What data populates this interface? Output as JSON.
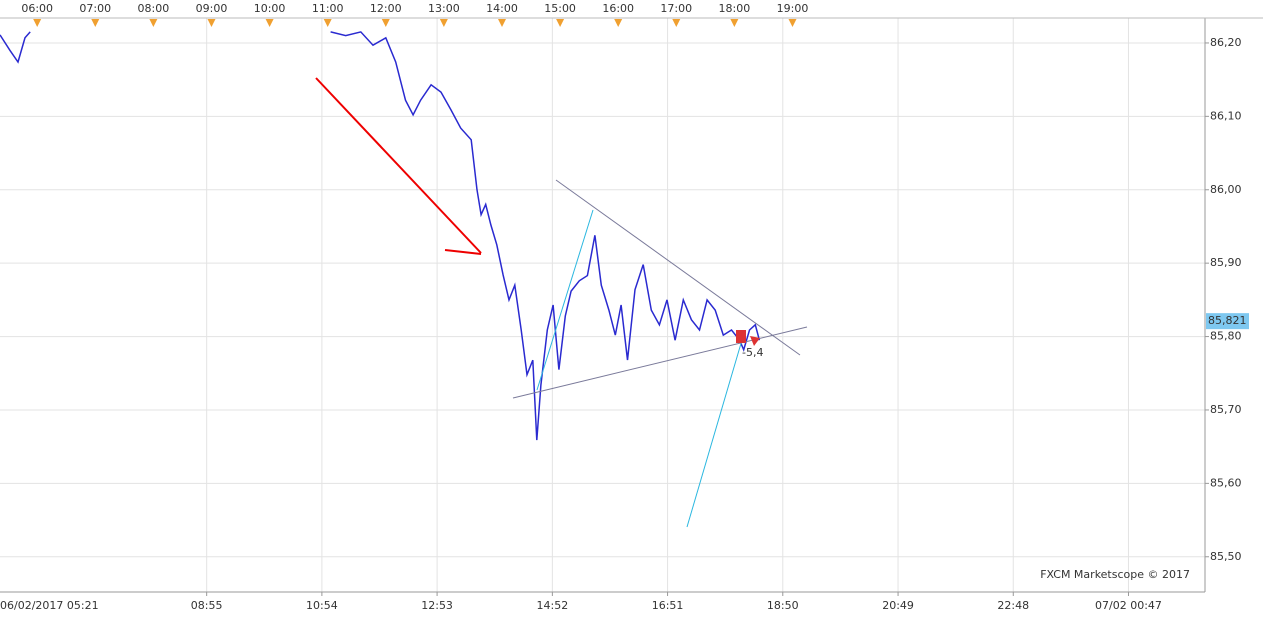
{
  "chart_data": {
    "type": "line",
    "x": [
      5.36,
      5.53,
      5.67,
      5.79,
      5.88,
      null,
      11.05,
      11.31,
      11.57,
      11.78,
      12.0,
      12.17,
      12.34,
      12.47,
      12.6,
      12.78,
      12.95,
      13.12,
      13.29,
      13.47,
      13.57,
      13.64,
      13.72,
      13.81,
      13.91,
      14.02,
      14.12,
      14.22,
      14.33,
      14.43,
      14.53,
      14.6,
      14.67,
      14.78,
      14.88,
      14.98,
      15.09,
      15.19,
      15.33,
      15.47,
      15.6,
      15.71,
      15.84,
      15.95,
      16.05,
      16.16,
      16.29,
      16.43,
      16.57,
      16.71,
      16.84,
      16.98,
      17.12,
      17.26,
      17.4,
      17.53,
      17.67,
      17.81,
      17.95,
      18.09,
      18.16,
      18.26,
      18.36,
      18.43
    ],
    "values": [
      86.211,
      86.19,
      86.174,
      86.207,
      86.215,
      null,
      86.215,
      86.21,
      86.215,
      86.197,
      86.207,
      86.174,
      86.122,
      86.102,
      86.122,
      86.143,
      86.133,
      86.109,
      86.084,
      86.068,
      86.0,
      85.966,
      85.98,
      85.952,
      85.925,
      85.884,
      85.85,
      85.87,
      85.809,
      85.748,
      85.768,
      85.659,
      85.734,
      85.809,
      85.843,
      85.755,
      85.828,
      85.862,
      85.876,
      85.883,
      85.938,
      85.87,
      85.836,
      85.802,
      85.843,
      85.768,
      85.864,
      85.898,
      85.836,
      85.816,
      85.85,
      85.795,
      85.85,
      85.823,
      85.809,
      85.85,
      85.836,
      85.802,
      85.809,
      85.795,
      85.782,
      85.809,
      85.816,
      85.795
    ],
    "color": "#2a2ad0",
    "xlim": [
      5.36,
      26.1
    ],
    "ylim": [
      85.452,
      86.234
    ],
    "xticks": [
      {
        "value": 5.35,
        "label": "06/02/2017 05:21"
      },
      {
        "value": 8.917,
        "label": "08:55"
      },
      {
        "value": 10.9,
        "label": "10:54"
      },
      {
        "value": 12.883,
        "label": "12:53"
      },
      {
        "value": 14.867,
        "label": "14:52"
      },
      {
        "value": 16.85,
        "label": "16:51"
      },
      {
        "value": 18.833,
        "label": "18:50"
      },
      {
        "value": 20.817,
        "label": "20:49"
      },
      {
        "value": 22.8,
        "label": "22:48"
      },
      {
        "value": 24.783,
        "label": "07/02 00:47"
      }
    ],
    "top_xticks": [
      {
        "value": 6,
        "label": "06:00"
      },
      {
        "value": 7,
        "label": "07:00"
      },
      {
        "value": 8,
        "label": "08:00"
      },
      {
        "value": 9,
        "label": "09:00"
      },
      {
        "value": 10,
        "label": "10:00"
      },
      {
        "value": 11,
        "label": "11:00"
      },
      {
        "value": 12,
        "label": "12:00"
      },
      {
        "value": 13,
        "label": "13:00"
      },
      {
        "value": 14,
        "label": "14:00"
      },
      {
        "value": 15,
        "label": "15:00"
      },
      {
        "value": 16,
        "label": "16:00"
      },
      {
        "value": 17,
        "label": "17:00"
      },
      {
        "value": 18,
        "label": "18:00"
      },
      {
        "value": 19,
        "label": "19:00"
      }
    ],
    "yticks": [
      {
        "value": 86.2,
        "label": "86,20"
      },
      {
        "value": 86.1,
        "label": "86,10"
      },
      {
        "value": 86.0,
        "label": "86,00"
      },
      {
        "value": 85.9,
        "label": "85,90"
      },
      {
        "value": 85.8,
        "label": "85,80"
      },
      {
        "value": 85.7,
        "label": "85,70"
      },
      {
        "value": 85.6,
        "label": "85,60"
      },
      {
        "value": 85.5,
        "label": "85,50"
      }
    ],
    "last_price": {
      "value": 85.821,
      "label": "85,821"
    },
    "annotation": "-5,4",
    "credit": "FXCM Marketscope © 2017",
    "grid": true
  }
}
